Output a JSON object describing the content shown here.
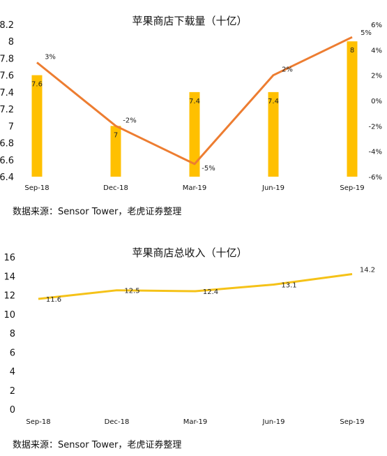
{
  "chart_data": [
    {
      "type": "bar",
      "title": "苹果商店下载量（十亿）",
      "categories": [
        "Sep-18",
        "Dec-18",
        "Mar-19",
        "Jun-19",
        "Sep-19"
      ],
      "series": [
        {
          "values": [
            7.6,
            7.0,
            7.4,
            7.4,
            8.0
          ],
          "labels": [
            "7.6",
            "7",
            "7.4",
            "7.4",
            "8"
          ],
          "color": "#FFC000",
          "axis": "left"
        },
        {
          "type": "line",
          "values": [
            3,
            -2,
            -5,
            2,
            5
          ],
          "labels": [
            "3%",
            "-2%",
            "-5%",
            "2%",
            "5%"
          ],
          "color": "#ED7D31",
          "axis": "right"
        }
      ],
      "ylim": [
        6.4,
        8.2
      ],
      "yticks": [
        "6.4",
        "6.6",
        "6.8",
        "7",
        "7.2",
        "7.4",
        "7.6",
        "7.8",
        "8",
        "8.2"
      ],
      "y2lim": [
        -6,
        6
      ],
      "y2ticks": [
        "-6%",
        "-4%",
        "-2%",
        "0%",
        "2%",
        "4%",
        "6%"
      ],
      "grid": false,
      "legend": "none"
    },
    {
      "type": "line",
      "title": "苹果商店总收入（十亿）",
      "categories": [
        "Sep-18",
        "Dec-18",
        "Mar-19",
        "Jun-19",
        "Sep-19"
      ],
      "series": [
        {
          "values": [
            11.6,
            12.5,
            12.4,
            13.1,
            14.2
          ],
          "labels": [
            "11.6",
            "12.5",
            "12.4",
            "13.1",
            "14.2"
          ],
          "color": "#F5C218"
        }
      ],
      "ylim": [
        0,
        16
      ],
      "yticks": [
        "0",
        "2",
        "4",
        "6",
        "8",
        "10",
        "12",
        "14",
        "16"
      ],
      "grid": false,
      "legend": "none"
    }
  ],
  "sources": [
    "数据来源：Sensor Tower，老虎证券整理",
    "数据来源：Sensor Tower，老虎证券整理"
  ]
}
